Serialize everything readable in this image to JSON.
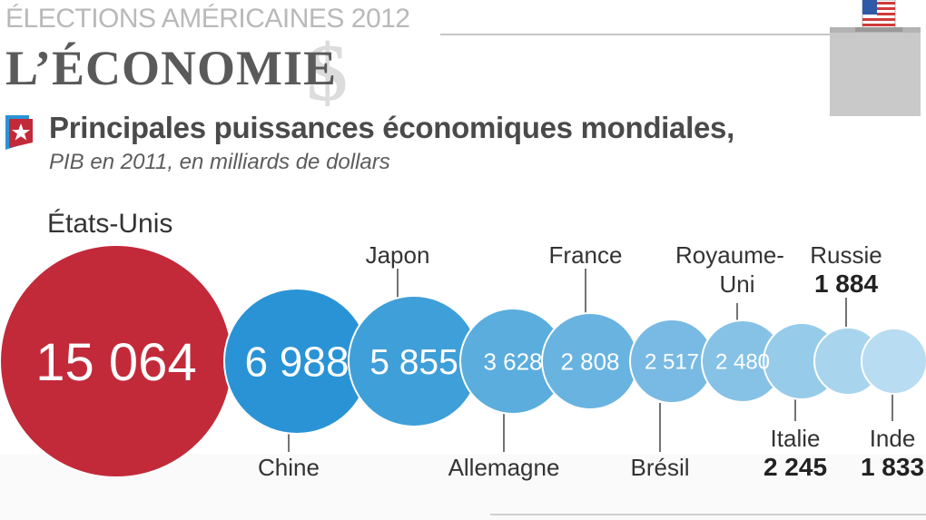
{
  "header": {
    "kicker": "ÉLECTIONS AMÉRICAINES 2012",
    "headline": "L’ÉCONOMIE",
    "headline_symbol": "$",
    "subtitle": "Principales puissances économiques mondiales,",
    "subtitle_unit": "PIB en 2011, en milliards de dollars"
  },
  "colors": {
    "usa": "#c22a3a",
    "primary_blue": "#2a93d5",
    "gray_text": "#4a4a4a"
  },
  "chart_data": {
    "type": "bubble",
    "title": "Principales puissances économiques mondiales,",
    "subtitle": "PIB en 2011, en milliards de dollars",
    "series": [
      {
        "name": "",
        "points": [
          {
            "country": "États-Unis",
            "value": 15064,
            "value_label": "15 064"
          },
          {
            "country": "Chine",
            "value": 6988,
            "value_label": "6 988"
          },
          {
            "country": "Japon",
            "value": 5855,
            "value_label": "5 855"
          },
          {
            "country": "Allemagne",
            "value": 3628,
            "value_label": "3 628"
          },
          {
            "country": "France",
            "value": 2808,
            "value_label": "2 808"
          },
          {
            "country": "Brésil",
            "value": 2517,
            "value_label": "2 517"
          },
          {
            "country": "Royaume-Uni",
            "value": 2480,
            "value_label": "2 480"
          },
          {
            "country": "Italie",
            "value": 2245,
            "value_label": "2 245"
          },
          {
            "country": "Russie",
            "value": 1884,
            "value_label": "1 884"
          },
          {
            "country": "Inde",
            "value": 1833,
            "value_label": "1 833"
          }
        ]
      }
    ]
  }
}
